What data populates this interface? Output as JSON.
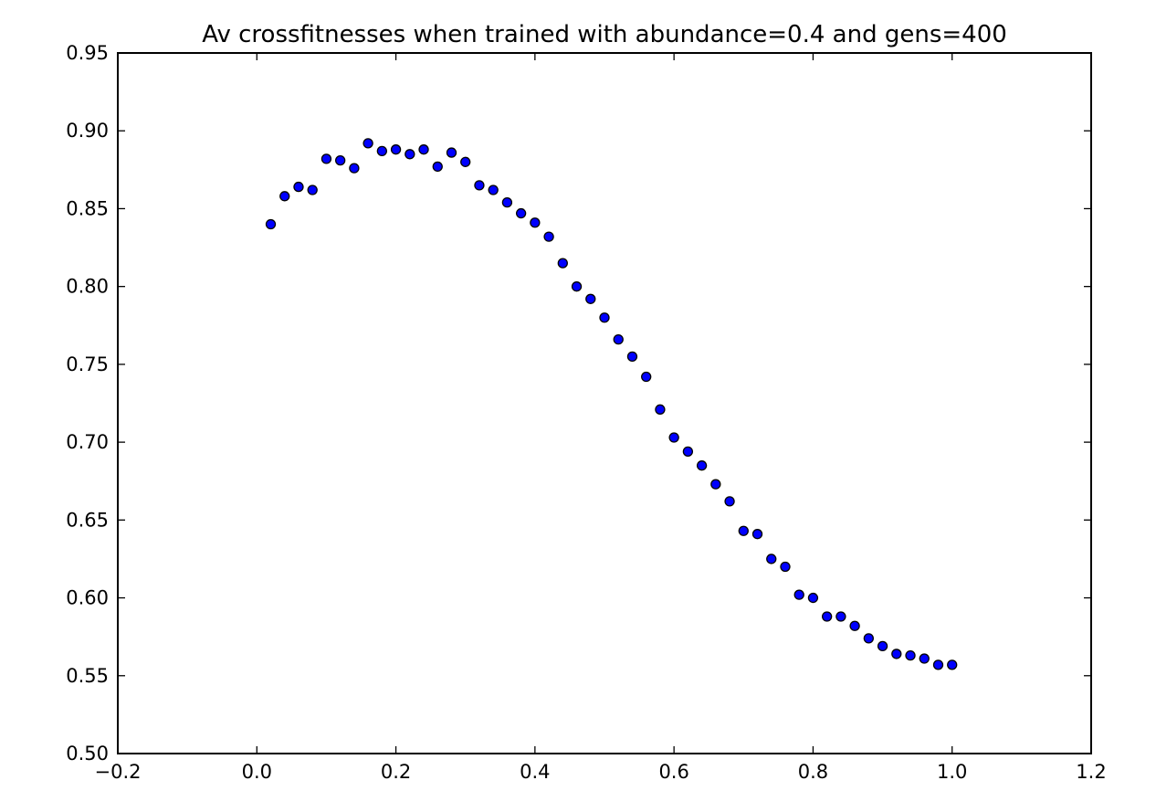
{
  "chart_data": {
    "type": "scatter",
    "title": "Av crossfitnesses when trained with abundance=0.4 and gens=400",
    "xlabel": "",
    "ylabel": "",
    "xlim": [
      -0.2,
      1.2
    ],
    "ylim": [
      0.5,
      0.95
    ],
    "xticks": [
      -0.2,
      0.0,
      0.2,
      0.4,
      0.6,
      0.8,
      1.0,
      1.2
    ],
    "xtick_labels": [
      "−0.2",
      "0.0",
      "0.2",
      "0.4",
      "0.6",
      "0.8",
      "1.0",
      "1.2"
    ],
    "yticks": [
      0.5,
      0.55,
      0.6,
      0.65,
      0.7,
      0.75,
      0.8,
      0.85,
      0.9,
      0.95
    ],
    "ytick_labels": [
      "0.50",
      "0.55",
      "0.60",
      "0.65",
      "0.70",
      "0.75",
      "0.80",
      "0.85",
      "0.90",
      "0.95"
    ],
    "grid": false,
    "legend": "none",
    "marker_color": "#0000ff",
    "marker_edge_color": "#000000",
    "series": [
      {
        "x": [
          0.02,
          0.04,
          0.06,
          0.08,
          0.1,
          0.12,
          0.14,
          0.16,
          0.18,
          0.2,
          0.22,
          0.24,
          0.26,
          0.28,
          0.3,
          0.32,
          0.34,
          0.36,
          0.38,
          0.4,
          0.42,
          0.44,
          0.46,
          0.48,
          0.5,
          0.52,
          0.54,
          0.56,
          0.58,
          0.6,
          0.62,
          0.64,
          0.66,
          0.68,
          0.7,
          0.72,
          0.74,
          0.76,
          0.78,
          0.8,
          0.82,
          0.84,
          0.86,
          0.88,
          0.9,
          0.92,
          0.94,
          0.96,
          0.98,
          1.0
        ],
        "y": [
          0.84,
          0.858,
          0.864,
          0.862,
          0.882,
          0.881,
          0.876,
          0.892,
          0.887,
          0.888,
          0.885,
          0.888,
          0.877,
          0.886,
          0.88,
          0.865,
          0.862,
          0.854,
          0.847,
          0.841,
          0.832,
          0.815,
          0.8,
          0.792,
          0.78,
          0.766,
          0.755,
          0.742,
          0.721,
          0.703,
          0.694,
          0.685,
          0.673,
          0.662,
          0.643,
          0.641,
          0.625,
          0.62,
          0.602,
          0.6,
          0.588,
          0.588,
          0.582,
          0.574,
          0.569,
          0.564,
          0.563,
          0.561,
          0.557,
          0.557
        ]
      }
    ]
  }
}
